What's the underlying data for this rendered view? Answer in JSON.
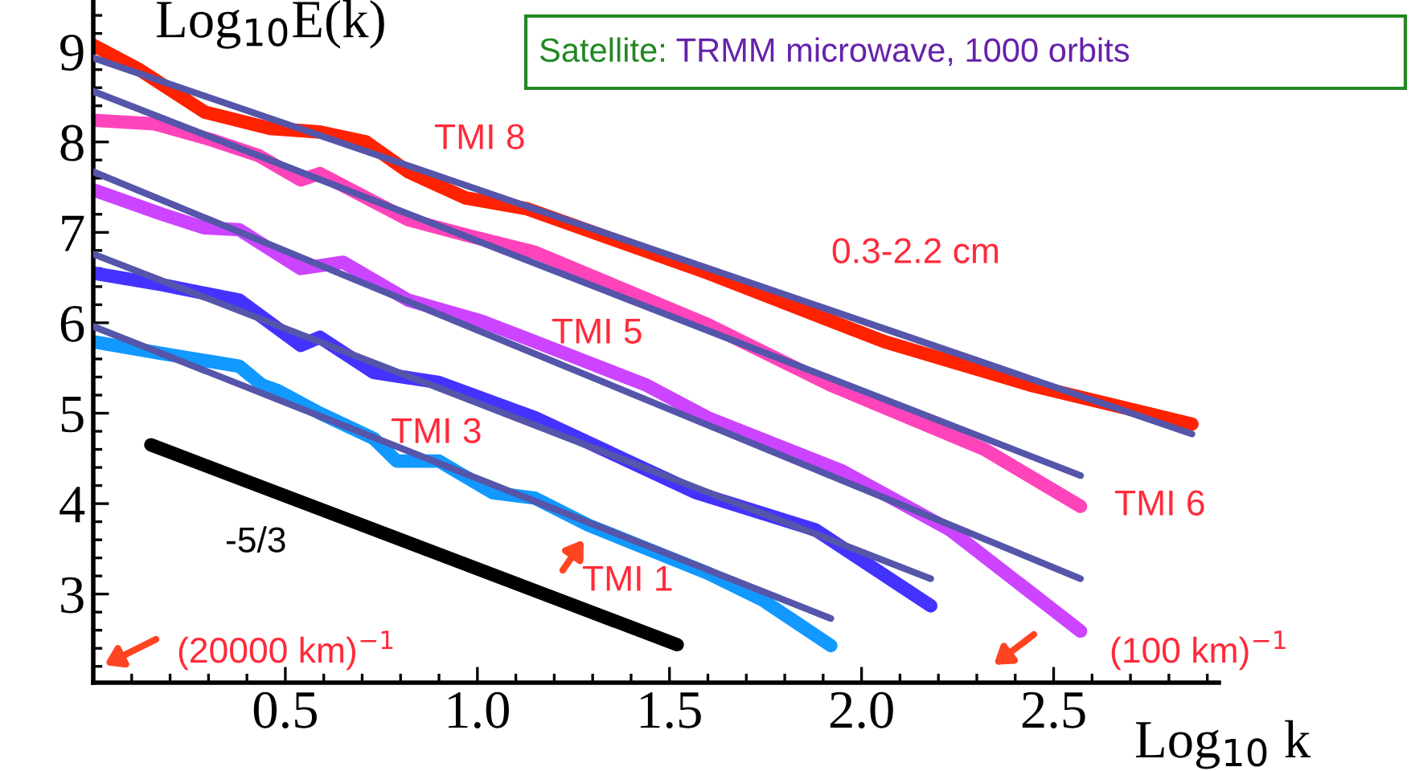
{
  "chart_data": {
    "type": "line",
    "xlabel": "Log$_{10}$ k",
    "ylabel": "Log$_{10}$E(k)",
    "xlim": [
      0,
      2.93
    ],
    "ylim": [
      2.02,
      9.57
    ],
    "xticks": [
      {
        "value": 0.5,
        "label": "0.5"
      },
      {
        "value": 1.0,
        "label": "1.0"
      },
      {
        "value": 1.5,
        "label": "1.5"
      },
      {
        "value": 2.0,
        "label": "2.0"
      },
      {
        "value": 2.5,
        "label": "2.5"
      }
    ],
    "yticks": [
      3,
      4,
      5,
      6,
      7,
      8,
      9
    ],
    "grid": false,
    "marker": "none",
    "line_style": "solid",
    "series": [
      {
        "color": "#ff2200",
        "x": [
          0,
          0.12,
          0.29,
          0.46,
          0.59,
          0.71,
          0.82,
          0.97,
          1.13,
          1.6,
          2.06,
          2.44,
          2.86
        ],
        "values": [
          9.07,
          8.8,
          8.33,
          8.15,
          8.11,
          8.0,
          7.67,
          7.38,
          7.26,
          6.55,
          5.79,
          5.31,
          4.88
        ]
      },
      {
        "color": "#ff44bb",
        "x": [
          0,
          0.16,
          0.31,
          0.43,
          0.54,
          0.59,
          0.82,
          0.98,
          1.15,
          1.6,
          1.92,
          2.32,
          2.57
        ],
        "values": [
          8.24,
          8.2,
          8.02,
          7.85,
          7.58,
          7.65,
          7.14,
          6.96,
          6.78,
          5.98,
          5.31,
          4.6,
          3.97
        ]
      },
      {
        "color": "#cc44ff",
        "x": [
          0,
          0.18,
          0.29,
          0.38,
          0.54,
          0.65,
          0.82,
          1.01,
          1.15,
          1.44,
          1.6,
          1.95,
          2.23,
          2.57
        ],
        "values": [
          7.47,
          7.2,
          7.05,
          7.03,
          6.6,
          6.67,
          6.25,
          6.02,
          5.79,
          5.31,
          4.95,
          4.36,
          3.71,
          2.59
        ]
      },
      {
        "color": "#4433ff",
        "x": [
          0,
          0.18,
          0.38,
          0.54,
          0.59,
          0.73,
          0.9,
          1.15,
          1.57,
          1.88,
          2.18
        ],
        "values": [
          6.55,
          6.42,
          6.25,
          5.75,
          5.84,
          5.45,
          5.34,
          4.95,
          4.12,
          3.71,
          2.87
        ]
      },
      {
        "color": "#1199ff",
        "x": [
          0,
          0.18,
          0.38,
          0.44,
          0.48,
          0.59,
          0.73,
          0.79,
          0.9,
          1.04,
          1.15,
          1.29,
          1.6,
          1.74,
          1.92
        ],
        "values": [
          5.79,
          5.66,
          5.52,
          5.31,
          5.25,
          5.0,
          4.72,
          4.47,
          4.47,
          4.12,
          4.06,
          3.76,
          3.23,
          2.94,
          2.43
        ]
      },
      {
        "color": "#5555aa",
        "x": [
          0,
          2.86
        ],
        "values": [
          8.93,
          4.77
        ]
      },
      {
        "color": "#5555aa",
        "x": [
          0,
          2.57
        ],
        "values": [
          8.56,
          4.31
        ]
      },
      {
        "color": "#5555aa",
        "x": [
          0,
          2.57
        ],
        "values": [
          7.67,
          3.17
        ]
      },
      {
        "color": "#5555aa",
        "x": [
          0,
          2.18
        ],
        "values": [
          6.76,
          3.17
        ]
      },
      {
        "color": "#5555aa",
        "x": [
          0,
          1.92
        ],
        "values": [
          5.96,
          2.73
        ]
      },
      {
        "color": "#000000",
        "x": [
          0.15,
          1.52
        ],
        "values": [
          4.65,
          2.44
        ]
      }
    ],
    "annotations": [
      "TMI 8",
      "0.3-2.2 cm",
      "TMI 5",
      "TMI 3",
      "TMI 6",
      "-5/3",
      "TMI 1",
      "(20000 km)$^{−1}$",
      "(100 km)$^{−1}$",
      "Satellite:",
      "TRMM microwave, 1000 orbits"
    ]
  }
}
